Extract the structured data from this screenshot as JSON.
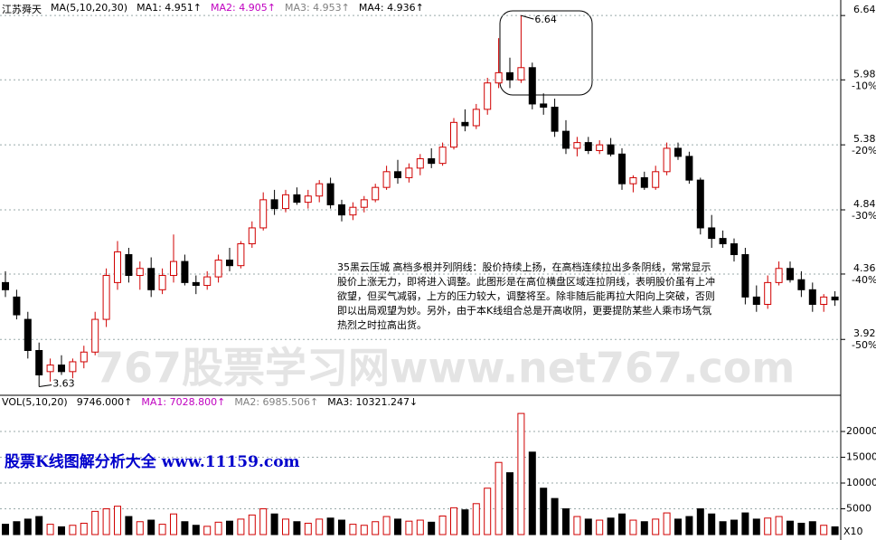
{
  "chart_data": {
    "type": "candlestick",
    "title": "江苏舜天",
    "ma_header": [
      {
        "text": "MA(5,10,20,30)",
        "color": "#000000"
      },
      {
        "text": "MA1: 4.951↑",
        "color": "#000000"
      },
      {
        "text": "MA2: 4.905↑",
        "color": "#c000c0"
      },
      {
        "text": "MA3: 4.953↑",
        "color": "#808080"
      },
      {
        "text": "MA4: 4.936↑",
        "color": "#000000"
      }
    ],
    "open": [
      4.3,
      4.2,
      4.05,
      3.85,
      3.72,
      3.76,
      3.72,
      3.78,
      3.84,
      4.05,
      4.3,
      4.5,
      4.35,
      4.4,
      4.25,
      4.35,
      4.45,
      4.3,
      4.28,
      4.34,
      4.46,
      4.42,
      4.58,
      4.7,
      4.92,
      4.85,
      4.96,
      4.9,
      4.95,
      5.05,
      4.88,
      4.8,
      4.86,
      4.92,
      5.02,
      5.15,
      5.1,
      5.18,
      5.26,
      5.22,
      5.36,
      5.58,
      5.55,
      5.7,
      5.95,
      6.05,
      5.98,
      6.1,
      5.75,
      5.72,
      5.5,
      5.35,
      5.4,
      5.33,
      5.38,
      5.3,
      5.05,
      5.1,
      5.02,
      5.15,
      5.35,
      5.28,
      5.08,
      4.7,
      4.62,
      4.58,
      4.5,
      4.2,
      4.15,
      4.3,
      4.4,
      4.32,
      4.25,
      4.15,
      4.2
    ],
    "high": [
      4.38,
      4.25,
      4.1,
      3.9,
      3.8,
      3.82,
      3.8,
      3.88,
      4.1,
      4.4,
      4.6,
      4.55,
      4.45,
      4.48,
      4.4,
      4.65,
      4.5,
      4.35,
      4.38,
      4.5,
      4.55,
      4.6,
      4.75,
      4.98,
      5.0,
      5.0,
      5.02,
      5.0,
      5.08,
      5.1,
      4.92,
      4.9,
      4.95,
      5.05,
      5.2,
      5.25,
      5.22,
      5.3,
      5.35,
      5.4,
      5.62,
      5.7,
      5.75,
      6.0,
      6.4,
      6.2,
      6.64,
      6.15,
      5.85,
      5.8,
      5.6,
      5.45,
      5.45,
      5.42,
      5.44,
      5.35,
      5.12,
      5.15,
      5.2,
      5.4,
      5.4,
      5.32,
      5.1,
      4.8,
      4.68,
      4.62,
      4.55,
      4.28,
      4.35,
      4.45,
      4.45,
      4.38,
      4.3,
      4.22,
      4.24
    ],
    "low": [
      4.2,
      4.05,
      3.8,
      3.63,
      3.66,
      3.7,
      3.68,
      3.74,
      3.82,
      4.0,
      4.25,
      4.3,
      4.25,
      4.2,
      4.22,
      4.3,
      4.28,
      4.22,
      4.25,
      4.3,
      4.38,
      4.4,
      4.55,
      4.68,
      4.8,
      4.82,
      4.88,
      4.85,
      4.9,
      4.85,
      4.75,
      4.76,
      4.82,
      4.9,
      5.0,
      5.05,
      5.06,
      5.12,
      5.18,
      5.2,
      5.34,
      5.5,
      5.52,
      5.65,
      5.9,
      5.9,
      5.95,
      5.7,
      5.65,
      5.45,
      5.3,
      5.28,
      5.3,
      5.3,
      5.28,
      5.0,
      4.98,
      5.0,
      5.0,
      5.12,
      5.25,
      5.05,
      4.65,
      4.55,
      4.55,
      4.45,
      4.15,
      4.1,
      4.12,
      4.28,
      4.3,
      4.2,
      4.1,
      4.1,
      4.14
    ],
    "close": [
      4.25,
      4.08,
      3.85,
      3.7,
      3.76,
      3.72,
      3.78,
      3.84,
      4.05,
      4.35,
      4.52,
      4.35,
      4.4,
      4.25,
      4.35,
      4.45,
      4.3,
      4.28,
      4.34,
      4.46,
      4.42,
      4.58,
      4.7,
      4.92,
      4.85,
      4.96,
      4.9,
      4.95,
      5.05,
      4.88,
      4.8,
      4.86,
      4.92,
      5.02,
      5.15,
      5.1,
      5.18,
      5.26,
      5.22,
      5.36,
      5.58,
      5.55,
      5.7,
      5.95,
      6.05,
      5.98,
      6.1,
      5.75,
      5.72,
      5.5,
      5.35,
      5.4,
      5.33,
      5.38,
      5.3,
      5.05,
      5.1,
      5.02,
      5.15,
      5.35,
      5.28,
      5.08,
      4.7,
      4.62,
      4.58,
      4.5,
      4.2,
      4.15,
      4.3,
      4.4,
      4.32,
      4.25,
      4.15,
      4.2,
      4.18
    ],
    "volume": [
      2000,
      2500,
      3000,
      3500,
      2000,
      1500,
      1800,
      2200,
      4500,
      5000,
      5500,
      3500,
      2500,
      2800,
      2000,
      4000,
      2500,
      1800,
      1600,
      2400,
      2600,
      3000,
      3800,
      5000,
      4000,
      3000,
      2500,
      2200,
      3000,
      3200,
      2800,
      2000,
      1800,
      2500,
      3500,
      3000,
      2600,
      2800,
      2400,
      3600,
      5200,
      4800,
      6000,
      9000,
      14000,
      12000,
      23500,
      16000,
      9000,
      7000,
      5000,
      3500,
      3000,
      2800,
      3200,
      4000,
      2800,
      2500,
      3000,
      4200,
      3000,
      3500,
      5000,
      4000,
      2500,
      2800,
      4200,
      3000,
      3200,
      3500,
      2600,
      2200,
      2500,
      1800,
      1500
    ],
    "up_color": "#d00000",
    "down_color": "#000000",
    "log_scale": true,
    "grid": true,
    "ylim": [
      3.59,
      6.73
    ],
    "yticks": [
      6.64,
      5.98,
      5.38,
      4.84,
      4.36,
      3.92
    ],
    "pct_ticks": [
      {
        "value": 5.98,
        "label": "-10%"
      },
      {
        "value": 5.38,
        "label": "-20%"
      },
      {
        "value": 4.84,
        "label": "-30%"
      },
      {
        "value": 4.36,
        "label": "-40%"
      },
      {
        "value": 3.92,
        "label": "-50%"
      }
    ],
    "annotations": {
      "high": "6.64",
      "low": "3.63",
      "text": "35黑云压城 高档多根并列阴线：股价持续上扬，在高档连续拉出多条阴线，常常显示股价上涨无力，即将进入调整。此图形是在高位横盘区域连拉阴线，表明股价虽有上冲欲望，但买气减弱，上方的压力较大，调整将至。除非随后能再拉大阳向上突破，否则即以出局观望为妙。另外，由于本K线组合总是开高收阴，更要提防某些人乘市场气氛热烈之时拉高出货。"
    },
    "volume_panel": {
      "header": [
        {
          "text": "VOL(5,10,20)",
          "color": "#000000"
        },
        {
          "text": "9746.000↑",
          "color": "#000000"
        },
        {
          "text": "MA1: 7028.800↑",
          "color": "#c000c0"
        },
        {
          "text": "MA2: 6985.506↑",
          "color": "#808080"
        },
        {
          "text": "MA3: 10321.247↓",
          "color": "#000000"
        }
      ],
      "ylim": [
        0,
        26500
      ],
      "yticks": [
        20000,
        15000,
        10000,
        5000
      ],
      "unit": "X10"
    }
  },
  "watermark": "767股票学习网www.net767.com",
  "footer_link": "股票K线图解分析大全 www.11159.com"
}
